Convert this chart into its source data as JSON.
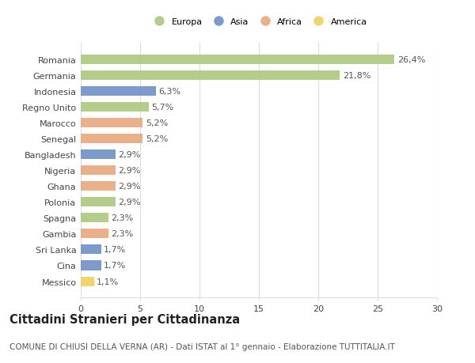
{
  "countries": [
    "Romania",
    "Germania",
    "Indonesia",
    "Regno Unito",
    "Marocco",
    "Senegal",
    "Bangladesh",
    "Nigeria",
    "Ghana",
    "Polonia",
    "Spagna",
    "Gambia",
    "Sri Lanka",
    "Cina",
    "Messico"
  ],
  "values": [
    26.4,
    21.8,
    6.3,
    5.7,
    5.2,
    5.2,
    2.9,
    2.9,
    2.9,
    2.9,
    2.3,
    2.3,
    1.7,
    1.7,
    1.1
  ],
  "labels": [
    "26,4%",
    "21,8%",
    "6,3%",
    "5,7%",
    "5,2%",
    "5,2%",
    "2,9%",
    "2,9%",
    "2,9%",
    "2,9%",
    "2,3%",
    "2,3%",
    "1,7%",
    "1,7%",
    "1,1%"
  ],
  "continent": [
    "Europa",
    "Europa",
    "Asia",
    "Europa",
    "Africa",
    "Africa",
    "Asia",
    "Africa",
    "Africa",
    "Europa",
    "Europa",
    "Africa",
    "Asia",
    "Asia",
    "America"
  ],
  "colors": {
    "Europa": "#adc87e",
    "Asia": "#6f90c5",
    "Africa": "#e8a87c",
    "America": "#f0d060"
  },
  "xlim": [
    0,
    30
  ],
  "xticks": [
    0,
    5,
    10,
    15,
    20,
    25,
    30
  ],
  "title": "Cittadini Stranieri per Cittadinanza",
  "subtitle": "COMUNE DI CHIUSI DELLA VERNA (AR) - Dati ISTAT al 1° gennaio - Elaborazione TUTTITALIA.IT",
  "background_color": "#ffffff",
  "grid_color": "#dddddd",
  "bar_height": 0.6,
  "label_fontsize": 8.0,
  "tick_fontsize": 8.0,
  "title_fontsize": 10.5,
  "subtitle_fontsize": 7.5,
  "legend_order": [
    "Europa",
    "Asia",
    "Africa",
    "America"
  ]
}
